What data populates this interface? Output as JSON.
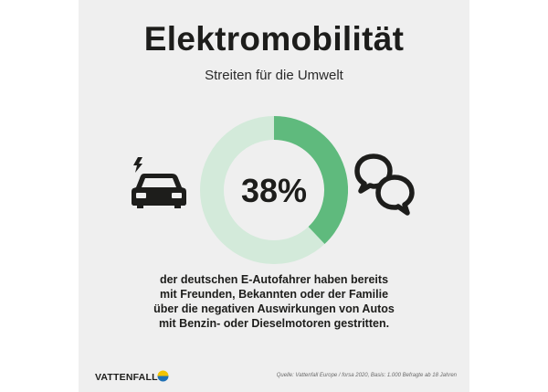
{
  "title": "Elektromobilität",
  "subtitle": "Streiten für die Umwelt",
  "chart_data": {
    "type": "pie",
    "variant": "donut",
    "values": [
      38,
      62
    ],
    "value_label": "38%",
    "colors": [
      "#5fba7d",
      "#d3eada"
    ]
  },
  "caption": [
    "der deutschen E-Autofahrer haben bereits",
    "mit Freunden, Bekannten oder der Familie",
    "über die negativen Auswirkungen von Autos",
    "mit Benzin- oder Dieselmotoren gestritten."
  ],
  "brand": "VATTENFALL",
  "source": "Quelle: Vattenfall Europe / forsa 2020, Basis: 1.000 Befragte ab 18 Jahren",
  "icons": {
    "left": "electric-car-icon",
    "right": "speech-bubbles-icon"
  },
  "colors": {
    "background": "#efefef",
    "accent": "#5fba7d",
    "accent_light": "#d3eada",
    "text": "#1d1d1b"
  }
}
